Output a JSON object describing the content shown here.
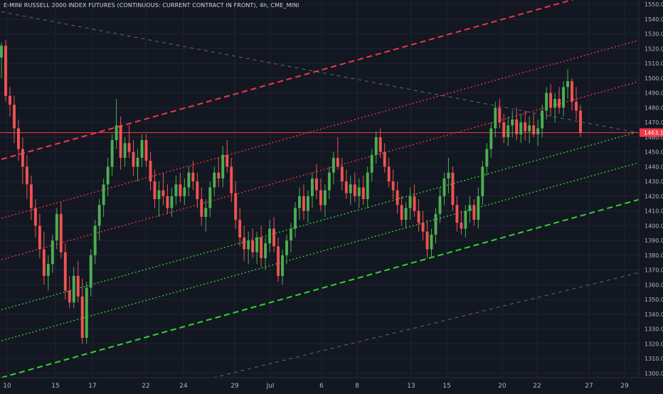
{
  "chart_data": {
    "type": "candlestick",
    "title": "E-MINI RUSSELL 2000 INDEX FUTURES (CONTINUOUS: CURRENT CONTRACT IN FRONT), 4h, CME_MINI",
    "symbol": "CME_MINI",
    "interval": "4h",
    "current_price_label": "1463.1",
    "price_tick_labels": [
      "1300.0",
      "1310.0",
      "1320.0",
      "1330.0",
      "1340.0",
      "1350.0",
      "1360.0",
      "1370.0",
      "1380.0",
      "1390.0",
      "1400.0",
      "1410.0",
      "1420.0",
      "1430.0",
      "1440.0",
      "1450.0",
      "1460.0",
      "1470.0",
      "1480.0",
      "1490.0",
      "1500.0",
      "1510.0",
      "1520.0",
      "1530.0",
      "1540.0",
      "1550.0"
    ],
    "time_tick_labels": [
      "10",
      "15",
      "17",
      "22",
      "24",
      "29",
      "Jul",
      "6",
      "8",
      "13",
      "15",
      "20",
      "22",
      "27",
      "29"
    ],
    "ylim": [
      1297,
      1553
    ],
    "grid": true,
    "colors": {
      "background": "#131722",
      "grid": "#1f2433",
      "up_candle": "#4caf50",
      "down_candle": "#ef5350",
      "red_channel": "#f23645",
      "green_channel": "#2bd62b",
      "gray_trend": "#787b86",
      "price_label_bg": "#f23645",
      "axis_text": "#b2b5be"
    },
    "candles": [
      [
        1514,
        1524,
        1500,
        1522
      ],
      [
        1522,
        1526,
        1484,
        1488
      ],
      [
        1488,
        1494,
        1474,
        1482
      ],
      [
        1482,
        1488,
        1456,
        1466
      ],
      [
        1466,
        1472,
        1444,
        1452
      ],
      [
        1452,
        1460,
        1428,
        1440
      ],
      [
        1440,
        1448,
        1418,
        1428
      ],
      [
        1428,
        1434,
        1404,
        1412
      ],
      [
        1412,
        1418,
        1392,
        1400
      ],
      [
        1400,
        1408,
        1378,
        1384
      ],
      [
        1384,
        1396,
        1360,
        1366
      ],
      [
        1366,
        1380,
        1356,
        1374
      ],
      [
        1374,
        1394,
        1368,
        1390
      ],
      [
        1390,
        1412,
        1384,
        1408
      ],
      [
        1408,
        1416,
        1378,
        1382
      ],
      [
        1382,
        1388,
        1350,
        1356
      ],
      [
        1356,
        1366,
        1344,
        1348
      ],
      [
        1348,
        1372,
        1344,
        1366
      ],
      [
        1366,
        1376,
        1348,
        1352
      ],
      [
        1352,
        1364,
        1320,
        1324
      ],
      [
        1324,
        1362,
        1320,
        1358
      ],
      [
        1358,
        1384,
        1352,
        1380
      ],
      [
        1380,
        1404,
        1374,
        1400
      ],
      [
        1400,
        1418,
        1390,
        1414
      ],
      [
        1414,
        1432,
        1406,
        1428
      ],
      [
        1428,
        1446,
        1420,
        1440
      ],
      [
        1440,
        1462,
        1434,
        1458
      ],
      [
        1458,
        1486,
        1452,
        1468
      ],
      [
        1468,
        1474,
        1438,
        1446
      ],
      [
        1446,
        1460,
        1440,
        1456
      ],
      [
        1456,
        1468,
        1446,
        1450
      ],
      [
        1450,
        1458,
        1434,
        1440
      ],
      [
        1440,
        1452,
        1430,
        1446
      ],
      [
        1446,
        1462,
        1440,
        1458
      ],
      [
        1458,
        1462,
        1440,
        1444
      ],
      [
        1444,
        1450,
        1424,
        1430
      ],
      [
        1430,
        1438,
        1412,
        1418
      ],
      [
        1418,
        1430,
        1406,
        1424
      ],
      [
        1424,
        1436,
        1414,
        1420
      ],
      [
        1420,
        1428,
        1408,
        1412
      ],
      [
        1412,
        1426,
        1406,
        1420
      ],
      [
        1420,
        1434,
        1414,
        1428
      ],
      [
        1428,
        1436,
        1416,
        1420
      ],
      [
        1420,
        1432,
        1414,
        1426
      ],
      [
        1426,
        1440,
        1420,
        1436
      ],
      [
        1436,
        1444,
        1424,
        1430
      ],
      [
        1430,
        1436,
        1412,
        1418
      ],
      [
        1418,
        1426,
        1400,
        1406
      ],
      [
        1406,
        1418,
        1396,
        1412
      ],
      [
        1412,
        1430,
        1406,
        1426
      ],
      [
        1426,
        1440,
        1420,
        1436
      ],
      [
        1436,
        1446,
        1426,
        1432
      ],
      [
        1432,
        1454,
        1426,
        1448
      ],
      [
        1448,
        1458,
        1436,
        1440
      ],
      [
        1440,
        1446,
        1416,
        1422
      ],
      [
        1422,
        1430,
        1398,
        1404
      ],
      [
        1404,
        1412,
        1386,
        1392
      ],
      [
        1392,
        1400,
        1376,
        1384
      ],
      [
        1384,
        1396,
        1374,
        1390
      ],
      [
        1390,
        1398,
        1378,
        1382
      ],
      [
        1382,
        1396,
        1374,
        1392
      ],
      [
        1392,
        1400,
        1372,
        1378
      ],
      [
        1378,
        1392,
        1370,
        1388
      ],
      [
        1388,
        1404,
        1382,
        1398
      ],
      [
        1398,
        1406,
        1382,
        1386
      ],
      [
        1386,
        1392,
        1362,
        1366
      ],
      [
        1366,
        1384,
        1360,
        1380
      ],
      [
        1380,
        1394,
        1374,
        1390
      ],
      [
        1390,
        1402,
        1382,
        1398
      ],
      [
        1398,
        1416,
        1392,
        1412
      ],
      [
        1412,
        1426,
        1404,
        1420
      ],
      [
        1420,
        1428,
        1404,
        1410
      ],
      [
        1410,
        1424,
        1402,
        1420
      ],
      [
        1420,
        1436,
        1412,
        1432
      ],
      [
        1432,
        1442,
        1418,
        1424
      ],
      [
        1424,
        1432,
        1410,
        1414
      ],
      [
        1414,
        1428,
        1406,
        1424
      ],
      [
        1424,
        1440,
        1418,
        1436
      ],
      [
        1436,
        1450,
        1428,
        1446
      ],
      [
        1446,
        1460,
        1438,
        1440
      ],
      [
        1440,
        1446,
        1424,
        1430
      ],
      [
        1430,
        1438,
        1418,
        1422
      ],
      [
        1422,
        1434,
        1414,
        1428
      ],
      [
        1428,
        1436,
        1416,
        1420
      ],
      [
        1420,
        1432,
        1412,
        1426
      ],
      [
        1426,
        1434,
        1414,
        1418
      ],
      [
        1418,
        1440,
        1412,
        1436
      ],
      [
        1436,
        1452,
        1430,
        1448
      ],
      [
        1448,
        1464,
        1442,
        1460
      ],
      [
        1460,
        1466,
        1446,
        1450
      ],
      [
        1450,
        1456,
        1436,
        1440
      ],
      [
        1440,
        1446,
        1426,
        1430
      ],
      [
        1430,
        1438,
        1418,
        1424
      ],
      [
        1424,
        1430,
        1408,
        1414
      ],
      [
        1414,
        1420,
        1400,
        1404
      ],
      [
        1404,
        1416,
        1398,
        1412
      ],
      [
        1412,
        1426,
        1404,
        1420
      ],
      [
        1420,
        1428,
        1406,
        1410
      ],
      [
        1410,
        1418,
        1396,
        1402
      ],
      [
        1402,
        1410,
        1390,
        1396
      ],
      [
        1396,
        1404,
        1378,
        1384
      ],
      [
        1384,
        1398,
        1378,
        1394
      ],
      [
        1394,
        1412,
        1388,
        1408
      ],
      [
        1408,
        1426,
        1402,
        1420
      ],
      [
        1420,
        1436,
        1414,
        1432
      ],
      [
        1432,
        1446,
        1422,
        1436
      ],
      [
        1436,
        1440,
        1410,
        1414
      ],
      [
        1414,
        1420,
        1396,
        1402
      ],
      [
        1402,
        1410,
        1394,
        1398
      ],
      [
        1398,
        1414,
        1392,
        1410
      ],
      [
        1410,
        1420,
        1402,
        1414
      ],
      [
        1414,
        1418,
        1400,
        1404
      ],
      [
        1404,
        1426,
        1398,
        1420
      ],
      [
        1420,
        1444,
        1414,
        1440
      ],
      [
        1440,
        1456,
        1434,
        1452
      ],
      [
        1452,
        1470,
        1446,
        1466
      ],
      [
        1466,
        1484,
        1460,
        1480
      ],
      [
        1480,
        1486,
        1466,
        1470
      ],
      [
        1470,
        1476,
        1456,
        1460
      ],
      [
        1460,
        1474,
        1454,
        1468
      ],
      [
        1468,
        1478,
        1460,
        1472
      ],
      [
        1472,
        1480,
        1458,
        1462
      ],
      [
        1462,
        1476,
        1456,
        1470
      ],
      [
        1470,
        1478,
        1458,
        1464
      ],
      [
        1464,
        1474,
        1456,
        1468
      ],
      [
        1468,
        1476,
        1460,
        1462
      ],
      [
        1462,
        1472,
        1454,
        1466
      ],
      [
        1466,
        1482,
        1460,
        1478
      ],
      [
        1478,
        1494,
        1472,
        1490
      ],
      [
        1490,
        1496,
        1474,
        1480
      ],
      [
        1480,
        1490,
        1470,
        1486
      ],
      [
        1486,
        1494,
        1476,
        1480
      ],
      [
        1480,
        1498,
        1474,
        1494
      ],
      [
        1494,
        1506,
        1486,
        1498
      ],
      [
        1498,
        1500,
        1478,
        1484
      ],
      [
        1484,
        1494,
        1472,
        1478
      ],
      [
        1478,
        1482,
        1460,
        1463
      ]
    ],
    "trendlines": [
      {
        "name": "red-dashed-upper",
        "style": "dashed",
        "color": "red",
        "x": [
          0,
          155
        ],
        "y": [
          1445,
          1570
        ]
      },
      {
        "name": "red-dotted-upper",
        "style": "dotted",
        "color": "red",
        "x": [
          0,
          155
        ],
        "y": [
          1405,
          1530
        ]
      },
      {
        "name": "red-dotted-lower",
        "style": "dotted",
        "color": "red",
        "x": [
          0,
          155
        ],
        "y": [
          1377,
          1502
        ]
      },
      {
        "name": "green-dotted-upper",
        "style": "dotted",
        "color": "green",
        "x": [
          0,
          155
        ],
        "y": [
          1343,
          1468
        ]
      },
      {
        "name": "green-dotted-lower",
        "style": "dotted",
        "color": "green",
        "x": [
          0,
          155
        ],
        "y": [
          1322,
          1447
        ]
      },
      {
        "name": "green-dashed-lower",
        "style": "dashed",
        "color": "green",
        "x": [
          0,
          155
        ],
        "y": [
          1297,
          1422
        ]
      },
      {
        "name": "gray-descending",
        "style": "dashed",
        "color": "gray",
        "x": [
          0,
          155
        ],
        "y": [
          1545,
          1460
        ]
      },
      {
        "name": "gray-ascending",
        "style": "dashed",
        "color": "gray",
        "x": [
          40,
          155
        ],
        "y": [
          1290,
          1372
        ]
      }
    ],
    "horizontal_line": {
      "price": 1463.1,
      "color": "red"
    }
  }
}
